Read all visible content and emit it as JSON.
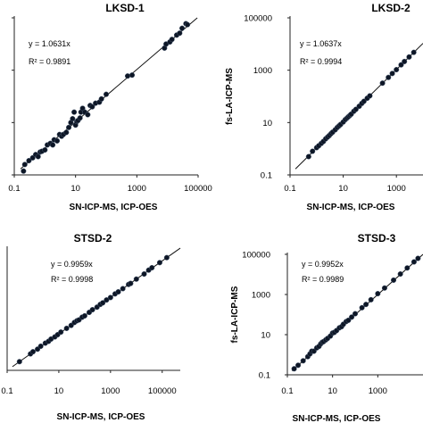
{
  "chart_data": [
    {
      "type": "scatter",
      "title": "LKSD-1",
      "xlabel": "SN-ICP-MS, ICP-OES",
      "ylabel": "",
      "x_scale": "log",
      "xlim": [
        0.1,
        100000
      ],
      "ylim": [
        0.1,
        100000
      ],
      "x_ticks": [
        "0.1",
        "10",
        "1000",
        "100000"
      ],
      "y_ticks": [],
      "equation": "y = 1.0631x",
      "r2": "R² = 0.9891",
      "fit_slope": 1.0631,
      "grid": false,
      "legend": "none",
      "color": "#0d1626",
      "points": [
        [
          0.2,
          0.14
        ],
        [
          0.22,
          0.25
        ],
        [
          0.3,
          0.35
        ],
        [
          0.4,
          0.45
        ],
        [
          0.5,
          0.6
        ],
        [
          0.6,
          0.5
        ],
        [
          0.7,
          0.75
        ],
        [
          0.8,
          0.8
        ],
        [
          1.0,
          0.9
        ],
        [
          1.2,
          1.4
        ],
        [
          1.5,
          1.6
        ],
        [
          1.8,
          1.4
        ],
        [
          2.0,
          2.2
        ],
        [
          2.5,
          2.0
        ],
        [
          3.0,
          3.5
        ],
        [
          3.5,
          3.0
        ],
        [
          4,
          3.5
        ],
        [
          5,
          4.2
        ],
        [
          6,
          6.5
        ],
        [
          7,
          10
        ],
        [
          8,
          14
        ],
        [
          9,
          25
        ],
        [
          10,
          8
        ],
        [
          11,
          11
        ],
        [
          12,
          12
        ],
        [
          14,
          15
        ],
        [
          15,
          25
        ],
        [
          17,
          35
        ],
        [
          20,
          25
        ],
        [
          25,
          20
        ],
        [
          30,
          45
        ],
        [
          35,
          40
        ],
        [
          45,
          55
        ],
        [
          60,
          60
        ],
        [
          70,
          80
        ],
        [
          100,
          120
        ],
        [
          500,
          600
        ],
        [
          700,
          650
        ],
        [
          8000,
          7000
        ],
        [
          9000,
          10000
        ],
        [
          12000,
          12000
        ],
        [
          14000,
          15000
        ],
        [
          20000,
          22000
        ],
        [
          25000,
          26000
        ],
        [
          30000,
          40000
        ],
        [
          40000,
          60000
        ],
        [
          45000,
          55000
        ]
      ]
    },
    {
      "type": "scatter",
      "title": "LKSD-2",
      "xlabel": "SN-ICP-MS, ICP-OES",
      "ylabel": "fs-LA-ICP-MS",
      "x_scale": "log",
      "y_scale": "log",
      "xlim": [
        0.1,
        10000
      ],
      "ylim": [
        0.1,
        100000
      ],
      "x_ticks": [
        "0.1",
        "10",
        "1000"
      ],
      "y_ticks": [
        "0.1",
        "10",
        "1000",
        "100000"
      ],
      "equation": "y = 1.0637x",
      "r2": "R² = 0.9994",
      "fit_slope": 1.0637,
      "grid": false,
      "legend": "none",
      "color": "#0d1626",
      "points": [
        [
          0.5,
          0.5
        ],
        [
          0.7,
          0.8
        ],
        [
          1.0,
          1.1
        ],
        [
          1.2,
          1.3
        ],
        [
          1.5,
          1.6
        ],
        [
          1.8,
          1.9
        ],
        [
          2.2,
          2.4
        ],
        [
          2.6,
          2.8
        ],
        [
          3,
          3.2
        ],
        [
          3.5,
          3.8
        ],
        [
          4,
          4.3
        ],
        [
          5,
          5.3
        ],
        [
          6,
          6.5
        ],
        [
          7,
          7.5
        ],
        [
          8,
          8.5
        ],
        [
          10,
          10.5
        ],
        [
          12,
          13
        ],
        [
          14,
          15
        ],
        [
          16,
          17
        ],
        [
          18,
          19
        ],
        [
          20,
          21
        ],
        [
          25,
          27
        ],
        [
          30,
          32
        ],
        [
          40,
          42
        ],
        [
          50,
          54
        ],
        [
          60,
          65
        ],
        [
          80,
          85
        ],
        [
          100,
          105
        ],
        [
          300,
          320
        ],
        [
          500,
          530
        ],
        [
          700,
          750
        ],
        [
          1000,
          1050
        ],
        [
          1500,
          1600
        ],
        [
          2000,
          2150
        ],
        [
          3000,
          3200
        ],
        [
          4500,
          4800
        ]
      ]
    },
    {
      "type": "scatter",
      "title": "STSD-2",
      "xlabel": "SN-ICP-MS, ICP-OES",
      "ylabel": "",
      "x_scale": "log",
      "xlim": [
        0.1,
        500000
      ],
      "ylim": [
        0.1,
        500000
      ],
      "x_ticks": [
        "0.1",
        "10",
        "1000",
        "100000"
      ],
      "y_ticks": [],
      "equation": "y = 0.9959x",
      "r2": "R² = 0.9998",
      "fit_slope": 0.9959,
      "grid": false,
      "legend": "none",
      "color": "#0d1626",
      "points": [
        [
          0.3,
          0.3
        ],
        [
          0.8,
          0.8
        ],
        [
          1.0,
          1.05
        ],
        [
          1.5,
          1.45
        ],
        [
          2,
          2.1
        ],
        [
          3,
          3.1
        ],
        [
          4,
          3.9
        ],
        [
          5,
          5.2
        ],
        [
          7,
          6.8
        ],
        [
          9,
          9
        ],
        [
          12,
          12.5
        ],
        [
          20,
          20
        ],
        [
          30,
          29
        ],
        [
          40,
          42
        ],
        [
          50,
          52
        ],
        [
          60,
          58
        ],
        [
          80,
          82
        ],
        [
          100,
          97
        ],
        [
          150,
          150
        ],
        [
          200,
          210
        ],
        [
          300,
          290
        ],
        [
          400,
          410
        ],
        [
          500,
          500
        ],
        [
          700,
          720
        ],
        [
          1000,
          980
        ],
        [
          1500,
          1550
        ],
        [
          2000,
          2000
        ],
        [
          3000,
          3000
        ],
        [
          5000,
          5100
        ],
        [
          6000,
          5800
        ],
        [
          10000,
          10000
        ],
        [
          20000,
          19000
        ],
        [
          30000,
          31000
        ],
        [
          40000,
          42000
        ],
        [
          80000,
          80000
        ],
        [
          150000,
          150000
        ]
      ]
    },
    {
      "type": "scatter",
      "title": "STSD-3",
      "xlabel": "SN-ICP-MS, ICP-OES",
      "ylabel": "fs-LA-ICP-MS",
      "x_scale": "log",
      "y_scale": "log",
      "xlim": [
        0.1,
        100000
      ],
      "ylim": [
        0.1,
        100000
      ],
      "x_ticks": [
        "0.1",
        "10",
        "1000"
      ],
      "y_ticks": [
        "0.1",
        "10",
        "1000",
        "100000"
      ],
      "equation": "y = 0.9952x",
      "r2": "R² = 0.9989",
      "fit_slope": 0.9952,
      "grid": false,
      "legend": "none",
      "color": "#0d1626",
      "points": [
        [
          0.2,
          0.2
        ],
        [
          0.3,
          0.3
        ],
        [
          0.5,
          0.5
        ],
        [
          0.8,
          0.8
        ],
        [
          1.0,
          1.1
        ],
        [
          1.2,
          1.5
        ],
        [
          1.5,
          1.5
        ],
        [
          2,
          2.2
        ],
        [
          2.5,
          2.6
        ],
        [
          3,
          3.5
        ],
        [
          3.5,
          4.2
        ],
        [
          4,
          4.5
        ],
        [
          5,
          5.5
        ],
        [
          6,
          6.5
        ],
        [
          8,
          8.5
        ],
        [
          10,
          12
        ],
        [
          12,
          13
        ],
        [
          15,
          16
        ],
        [
          20,
          22
        ],
        [
          25,
          25
        ],
        [
          30,
          33
        ],
        [
          40,
          45
        ],
        [
          50,
          52
        ],
        [
          70,
          75
        ],
        [
          100,
          110
        ],
        [
          200,
          220
        ],
        [
          300,
          320
        ],
        [
          500,
          550
        ],
        [
          1000,
          1100
        ],
        [
          2000,
          2100
        ],
        [
          5000,
          5200
        ],
        [
          10000,
          10500
        ],
        [
          20000,
          21000
        ],
        [
          40000,
          42000
        ],
        [
          60000,
          63000
        ]
      ]
    }
  ]
}
